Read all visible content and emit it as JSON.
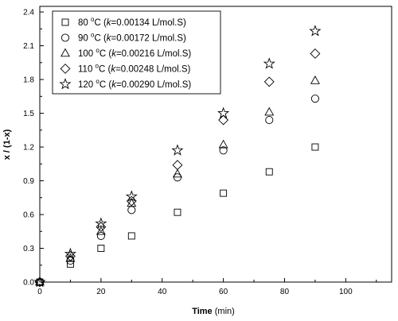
{
  "chart_data": {
    "type": "scatter",
    "title": "",
    "xlabel": {
      "bold": "Time",
      "plain": " (min)"
    },
    "ylabel": "x / (1-x)",
    "xlim": [
      0,
      115
    ],
    "ylim": [
      0,
      2.45
    ],
    "x_ticks": [
      "0",
      "20",
      "40",
      "60",
      "80",
      "100"
    ],
    "x_tick_values": [
      0,
      20,
      40,
      60,
      80,
      100
    ],
    "y_ticks": [
      "0.0",
      "0.3",
      "0.6",
      "0.9",
      "1.2",
      "1.5",
      "1.8",
      "2.1",
      "2.4"
    ],
    "y_tick_values": [
      0,
      0.3,
      0.6,
      0.9,
      1.2,
      1.5,
      1.8,
      2.1,
      2.4
    ],
    "grid": false,
    "legend_position": "top-left",
    "series": [
      {
        "name": "80 °C (k=0.00134 L/mol.S)",
        "label": {
          "temp": "80 ",
          "deg": "o",
          "c": "C (",
          "k": "k",
          "rest": "=0.00134 L/mol.S)"
        },
        "marker": "square",
        "x": [
          0,
          10,
          20,
          30,
          45,
          60,
          75,
          90
        ],
        "y": [
          0,
          0.16,
          0.3,
          0.41,
          0.62,
          0.79,
          0.98,
          1.2
        ]
      },
      {
        "name": "90 °C (k=0.00172 L/mol.S)",
        "label": {
          "temp": "90 ",
          "deg": "o",
          "c": "C (",
          "k": "k",
          "rest": "=0.00172 L/mol.S)"
        },
        "marker": "circle",
        "x": [
          0,
          10,
          20,
          30,
          45,
          60,
          75,
          90
        ],
        "y": [
          0,
          0.19,
          0.41,
          0.64,
          0.93,
          1.17,
          1.44,
          1.63
        ]
      },
      {
        "name": "100 °C (k=0.00216 L/mol.S)",
        "label": {
          "temp": "100 ",
          "deg": "o",
          "c": "C (",
          "k": "k",
          "rest": "=0.00216 L/mol.S)"
        },
        "marker": "triangle",
        "x": [
          0,
          10,
          20,
          30,
          45,
          60,
          75,
          90
        ],
        "y": [
          0,
          0.21,
          0.45,
          0.7,
          0.96,
          1.22,
          1.51,
          1.79
        ]
      },
      {
        "name": "110 °C (k=0.00248 L/mol.S)",
        "label": {
          "temp": "110 ",
          "deg": "o",
          "c": "C (",
          "k": "k",
          "rest": "=0.00248 L/mol.S)"
        },
        "marker": "diamond",
        "x": [
          0,
          10,
          20,
          30,
          45,
          60,
          75,
          90
        ],
        "y": [
          0,
          0.23,
          0.49,
          0.72,
          1.04,
          1.44,
          1.78,
          2.03
        ]
      },
      {
        "name": "120 °C (k=0.00290 L/mol.S)",
        "label": {
          "temp": "120 ",
          "deg": "o",
          "c": "C (",
          "k": "k",
          "rest": "=0.00290 L/mol.S)"
        },
        "marker": "star",
        "x": [
          0,
          10,
          20,
          30,
          45,
          60,
          75,
          90
        ],
        "y": [
          0,
          0.25,
          0.52,
          0.76,
          1.17,
          1.5,
          1.94,
          2.23
        ]
      }
    ]
  }
}
